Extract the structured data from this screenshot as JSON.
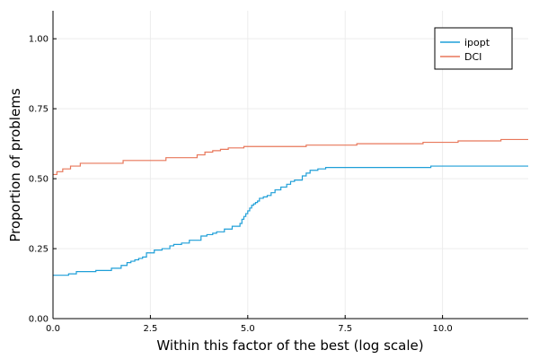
{
  "chart_data": {
    "type": "line",
    "title": "",
    "xlabel": "Within this factor of the best (log scale)",
    "ylabel": "Proportion of problems",
    "xlim": [
      0,
      12.2
    ],
    "ylim": [
      0,
      1.1
    ],
    "x_ticks": [
      0,
      2.5,
      5,
      7.5,
      10
    ],
    "x_tick_labels": [
      "0.0",
      "2.5",
      "5.0",
      "7.5",
      "10.0"
    ],
    "y_ticks": [
      0,
      0.25,
      0.5,
      0.75,
      1.0
    ],
    "y_tick_labels": [
      "0.00",
      "0.25",
      "0.50",
      "0.75",
      "1.00"
    ],
    "grid": true,
    "legend_position": "top-right",
    "step": true,
    "series": [
      {
        "name": "ipopt",
        "color": "#1f9fd8",
        "x": [
          0,
          0.4,
          0.6,
          1.1,
          1.5,
          1.75,
          1.9,
          2.0,
          2.1,
          2.2,
          2.3,
          2.4,
          2.6,
          2.8,
          3.0,
          3.1,
          3.3,
          3.5,
          3.8,
          3.95,
          4.1,
          4.2,
          4.4,
          4.6,
          4.8,
          4.85,
          4.9,
          4.95,
          5.0,
          5.05,
          5.1,
          5.15,
          5.2,
          5.25,
          5.3,
          5.4,
          5.5,
          5.6,
          5.7,
          5.85,
          6.0,
          6.1,
          6.2,
          6.4,
          6.5,
          6.6,
          6.8,
          7.0,
          7.5,
          8.0,
          8.5,
          9.0,
          9.7,
          10.5,
          11.5,
          12.2
        ],
        "y": [
          0.155,
          0.16,
          0.168,
          0.172,
          0.18,
          0.19,
          0.2,
          0.205,
          0.21,
          0.215,
          0.22,
          0.235,
          0.245,
          0.25,
          0.26,
          0.265,
          0.27,
          0.28,
          0.295,
          0.3,
          0.305,
          0.31,
          0.32,
          0.33,
          0.34,
          0.355,
          0.365,
          0.375,
          0.385,
          0.395,
          0.405,
          0.41,
          0.415,
          0.42,
          0.43,
          0.435,
          0.44,
          0.45,
          0.46,
          0.47,
          0.48,
          0.49,
          0.495,
          0.51,
          0.52,
          0.53,
          0.535,
          0.54,
          0.54,
          0.54,
          0.54,
          0.54,
          0.545,
          0.545,
          0.545,
          0.545
        ]
      },
      {
        "name": "DCI",
        "color": "#e8775a",
        "x": [
          0,
          0.1,
          0.25,
          0.45,
          0.7,
          1.8,
          2.9,
          3.7,
          3.9,
          4.1,
          4.3,
          4.5,
          4.9,
          5.6,
          6.5,
          7.8,
          9.5,
          10.4,
          11.0,
          11.5,
          12.2
        ],
        "y": [
          0.515,
          0.525,
          0.535,
          0.545,
          0.555,
          0.565,
          0.575,
          0.585,
          0.595,
          0.6,
          0.605,
          0.61,
          0.615,
          0.615,
          0.62,
          0.625,
          0.63,
          0.635,
          0.635,
          0.64,
          0.64
        ]
      }
    ]
  }
}
